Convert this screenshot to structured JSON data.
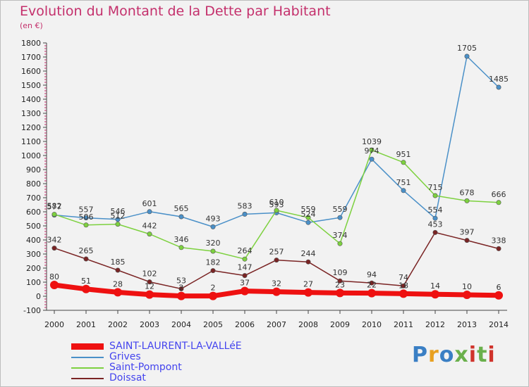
{
  "header": {
    "title": "Evolution du Montant de la Dette par Habitant",
    "subtitle": "(en €)"
  },
  "logo": {
    "text": "Proxiti",
    "colors": [
      "#3a7fc4",
      "#e8a020",
      "#6ab04c",
      "#d0342c"
    ]
  },
  "chart_data": {
    "type": "line",
    "x": [
      "2000",
      "2001",
      "2002",
      "2003",
      "2004",
      "2005",
      "2006",
      "2007",
      "2008",
      "2009",
      "2010",
      "2011",
      "2012",
      "2013",
      "2014"
    ],
    "ylim": [
      -100,
      1800
    ],
    "yticks": [
      -100,
      0,
      100,
      200,
      300,
      400,
      500,
      600,
      700,
      800,
      900,
      1000,
      1100,
      1200,
      1300,
      1400,
      1500,
      1600,
      1700,
      1800
    ],
    "grid": false,
    "legend_position": "bottom-left",
    "series": [
      {
        "name": "SAINT-LAURENT-LA-VALLéE",
        "color": "#ee1111",
        "values": [
          80,
          51,
          28,
          12,
          2,
          2,
          37,
          32,
          27,
          23,
          22,
          18,
          14,
          10,
          6
        ]
      },
      {
        "name": "Grives",
        "color": "#4a90c8",
        "values": [
          577,
          557,
          546,
          601,
          565,
          493,
          583,
          593,
          524,
          559,
          974,
          751,
          554,
          1705,
          1485
        ]
      },
      {
        "name": "Saint-Pompont",
        "color": "#7dd13f",
        "values": [
          582,
          506,
          512,
          442,
          346,
          320,
          264,
          610,
          559,
          374,
          1039,
          951,
          715,
          678,
          666
        ]
      },
      {
        "name": "Doissat",
        "color": "#7a2424",
        "values": [
          342,
          265,
          185,
          102,
          53,
          182,
          147,
          257,
          244,
          109,
          94,
          74,
          453,
          397,
          338
        ]
      }
    ]
  }
}
